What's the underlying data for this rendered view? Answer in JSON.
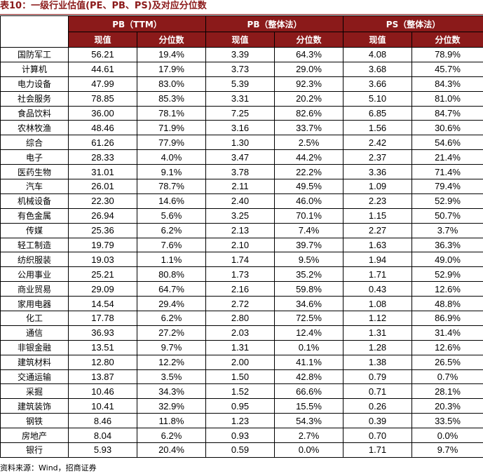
{
  "title": "表10：一级行业估值(PE、PB、PS)及对应分位数",
  "groups": [
    "PB（TTM）",
    "PB（整体法）",
    "PS（整体法）"
  ],
  "subheaders": [
    "现值",
    "分位数",
    "现值",
    "分位数",
    "现值",
    "分位数"
  ],
  "rows": [
    [
      "国防军工",
      "56.21",
      "19.4%",
      "3.39",
      "64.3%",
      "4.08",
      "78.9%"
    ],
    [
      "计算机",
      "44.61",
      "17.9%",
      "3.73",
      "29.0%",
      "3.68",
      "45.7%"
    ],
    [
      "电力设备",
      "47.99",
      "83.0%",
      "5.39",
      "92.3%",
      "3.66",
      "84.3%"
    ],
    [
      "社会服务",
      "78.85",
      "85.3%",
      "3.31",
      "20.2%",
      "5.10",
      "81.0%"
    ],
    [
      "食品饮料",
      "36.00",
      "78.1%",
      "7.25",
      "82.6%",
      "6.85",
      "84.7%"
    ],
    [
      "农林牧渔",
      "48.46",
      "71.9%",
      "3.16",
      "33.7%",
      "1.56",
      "30.6%"
    ],
    [
      "综合",
      "61.26",
      "77.9%",
      "1.30",
      "2.5%",
      "2.42",
      "54.6%"
    ],
    [
      "电子",
      "28.33",
      "4.0%",
      "3.47",
      "44.2%",
      "2.37",
      "21.4%"
    ],
    [
      "医药生物",
      "31.01",
      "9.1%",
      "3.78",
      "22.2%",
      "3.36",
      "71.4%"
    ],
    [
      "汽车",
      "26.01",
      "78.7%",
      "2.11",
      "49.5%",
      "1.09",
      "79.4%"
    ],
    [
      "机械设备",
      "22.30",
      "14.6%",
      "2.40",
      "46.0%",
      "2.23",
      "52.9%"
    ],
    [
      "有色金属",
      "26.94",
      "5.6%",
      "3.25",
      "70.1%",
      "1.15",
      "50.7%"
    ],
    [
      "传媒",
      "25.36",
      "6.2%",
      "2.13",
      "7.4%",
      "2.27",
      "3.7%"
    ],
    [
      "轻工制造",
      "19.79",
      "7.6%",
      "2.10",
      "39.7%",
      "1.63",
      "36.3%"
    ],
    [
      "纺织服装",
      "19.03",
      "1.1%",
      "1.74",
      "9.5%",
      "1.94",
      "49.0%"
    ],
    [
      "公用事业",
      "25.21",
      "80.8%",
      "1.73",
      "35.2%",
      "1.71",
      "52.9%"
    ],
    [
      "商业贸易",
      "29.09",
      "64.7%",
      "2.16",
      "59.8%",
      "0.43",
      "12.6%"
    ],
    [
      "家用电器",
      "14.54",
      "29.4%",
      "2.72",
      "34.6%",
      "1.08",
      "48.8%"
    ],
    [
      "化工",
      "17.78",
      "6.2%",
      "2.80",
      "72.5%",
      "1.12",
      "86.9%"
    ],
    [
      "通信",
      "36.93",
      "27.2%",
      "2.03",
      "12.4%",
      "1.31",
      "31.4%"
    ],
    [
      "非银金融",
      "13.51",
      "9.7%",
      "1.31",
      "0.1%",
      "1.28",
      "12.6%"
    ],
    [
      "建筑材料",
      "12.80",
      "12.2%",
      "2.00",
      "41.1%",
      "1.38",
      "26.5%"
    ],
    [
      "交通运输",
      "13.87",
      "3.5%",
      "1.50",
      "42.8%",
      "0.79",
      "0.7%"
    ],
    [
      "采掘",
      "10.46",
      "34.3%",
      "1.52",
      "66.6%",
      "0.71",
      "28.1%"
    ],
    [
      "建筑装饰",
      "10.41",
      "32.9%",
      "0.95",
      "15.5%",
      "0.26",
      "20.3%"
    ],
    [
      "钢铁",
      "8.46",
      "11.8%",
      "1.23",
      "54.3%",
      "0.39",
      "33.5%"
    ],
    [
      "房地产",
      "8.04",
      "6.2%",
      "0.93",
      "2.7%",
      "0.70",
      "0.0%"
    ],
    [
      "银行",
      "5.93",
      "20.4%",
      "0.59",
      "0.0%",
      "1.71",
      "9.7%"
    ]
  ],
  "source": "资料来源：Wind，招商证券",
  "colors": {
    "header_bg": "#8b1a1a",
    "title": "#8b1a1a"
  }
}
